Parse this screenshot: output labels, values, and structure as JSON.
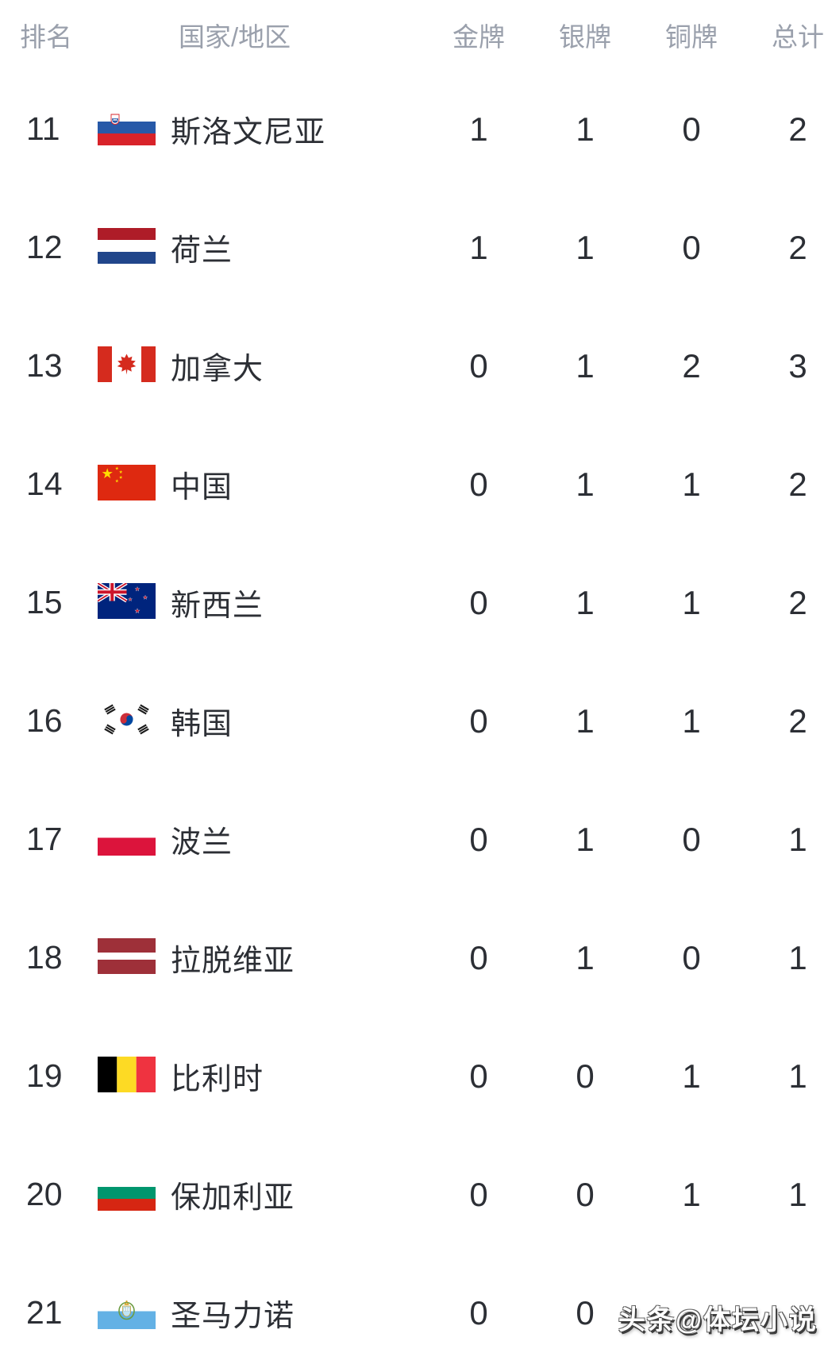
{
  "header": {
    "rank": "排名",
    "country": "国家/地区",
    "gold": "金牌",
    "silver": "银牌",
    "bronze": "铜牌",
    "total": "总计"
  },
  "rows": [
    {
      "rank": "11",
      "country": "斯洛文尼亚",
      "flag": "slovenia",
      "gold": "1",
      "silver": "1",
      "bronze": "0",
      "total": "2"
    },
    {
      "rank": "12",
      "country": "荷兰",
      "flag": "netherlands",
      "gold": "1",
      "silver": "1",
      "bronze": "0",
      "total": "2"
    },
    {
      "rank": "13",
      "country": "加拿大",
      "flag": "canada",
      "gold": "0",
      "silver": "1",
      "bronze": "2",
      "total": "3"
    },
    {
      "rank": "14",
      "country": "中国",
      "flag": "china",
      "gold": "0",
      "silver": "1",
      "bronze": "1",
      "total": "2"
    },
    {
      "rank": "15",
      "country": "新西兰",
      "flag": "new-zealand",
      "gold": "0",
      "silver": "1",
      "bronze": "1",
      "total": "2"
    },
    {
      "rank": "16",
      "country": "韩国",
      "flag": "south-korea",
      "gold": "0",
      "silver": "1",
      "bronze": "1",
      "total": "2"
    },
    {
      "rank": "17",
      "country": "波兰",
      "flag": "poland",
      "gold": "0",
      "silver": "1",
      "bronze": "0",
      "total": "1"
    },
    {
      "rank": "18",
      "country": "拉脱维亚",
      "flag": "latvia",
      "gold": "0",
      "silver": "1",
      "bronze": "0",
      "total": "1"
    },
    {
      "rank": "19",
      "country": "比利时",
      "flag": "belgium",
      "gold": "0",
      "silver": "0",
      "bronze": "1",
      "total": "1"
    },
    {
      "rank": "20",
      "country": "保加利亚",
      "flag": "bulgaria",
      "gold": "0",
      "silver": "0",
      "bronze": "1",
      "total": "1"
    },
    {
      "rank": "21",
      "country": "圣马力诺",
      "flag": "san-marino",
      "gold": "0",
      "silver": "0",
      "bronze": "",
      "total": ""
    }
  ],
  "watermark": "头条@体坛小说",
  "colors": {
    "background": "#FFFFFF",
    "header_text": "#9AA0AC",
    "body_text": "#2C2F35",
    "watermark_fill": "#FFFFFF",
    "watermark_outline": "#3D3D3D"
  }
}
